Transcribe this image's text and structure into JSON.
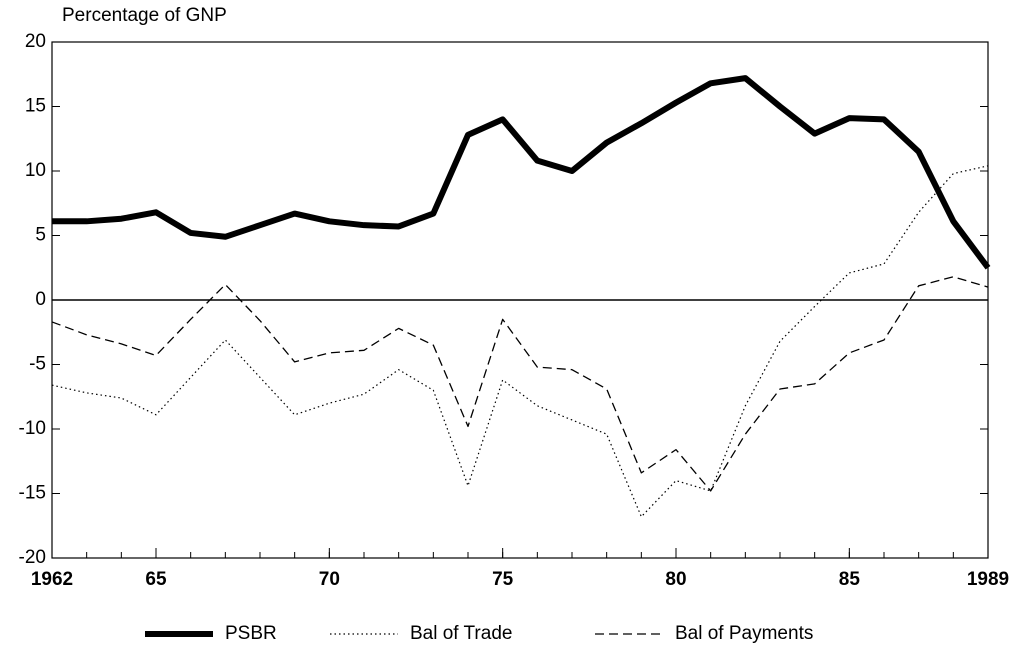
{
  "chart_data": {
    "type": "line",
    "y_axis_label": "Percentage of GNP",
    "x": [
      1962,
      1963,
      1964,
      1965,
      1966,
      1967,
      1968,
      1969,
      1970,
      1971,
      1972,
      1973,
      1974,
      1975,
      1976,
      1977,
      1978,
      1979,
      1980,
      1981,
      1982,
      1983,
      1984,
      1985,
      1986,
      1987,
      1988,
      1989
    ],
    "series": [
      {
        "name": "PSBR",
        "color": "#000000",
        "style": "solid",
        "values": [
          6.1,
          6.1,
          6.3,
          6.8,
          5.2,
          4.9,
          5.8,
          6.7,
          6.1,
          5.8,
          5.7,
          6.7,
          12.8,
          14.0,
          10.8,
          10.0,
          12.2,
          13.7,
          15.3,
          16.8,
          17.2,
          15.0,
          12.9,
          14.1,
          14.0,
          11.5,
          6.1,
          2.5
        ]
      },
      {
        "name": "Bal of Trade",
        "color": "#000000",
        "style": "dotted",
        "values": [
          -6.6,
          -7.2,
          -7.6,
          -8.9,
          -6.0,
          -3.1,
          -6.0,
          -8.9,
          -8.0,
          -7.3,
          -5.4,
          -7.0,
          -14.4,
          -6.2,
          -8.2,
          -9.3,
          -10.4,
          -16.8,
          -14.0,
          -14.8,
          -8.2,
          -3.2,
          -0.5,
          2.1,
          2.8,
          6.8,
          9.8,
          10.4
        ]
      },
      {
        "name": "Bal of Payments",
        "color": "#000000",
        "style": "dashed",
        "values": [
          -1.7,
          -2.7,
          -3.4,
          -4.3,
          -1.5,
          1.2,
          -1.6,
          -4.8,
          -4.1,
          -3.9,
          -2.2,
          -3.5,
          -9.8,
          -1.5,
          -5.2,
          -5.4,
          -6.9,
          -13.4,
          -11.6,
          -14.8,
          -10.4,
          -6.9,
          -6.5,
          -4.1,
          -3.1,
          1.1,
          1.8,
          1.0
        ]
      }
    ],
    "xlim": [
      1962,
      1989
    ],
    "xticks": [
      1962,
      {
        "value": 1965,
        "label": "65"
      },
      {
        "value": 1970,
        "label": "70"
      },
      {
        "value": 1975,
        "label": "75"
      },
      {
        "value": 1980,
        "label": "80"
      },
      {
        "value": 1985,
        "label": "85"
      },
      1989
    ],
    "ylim": [
      -20,
      20
    ],
    "yticks": [
      -20,
      -15,
      -10,
      -5,
      0,
      5,
      10,
      15,
      20
    ],
    "legend": "bottom"
  }
}
